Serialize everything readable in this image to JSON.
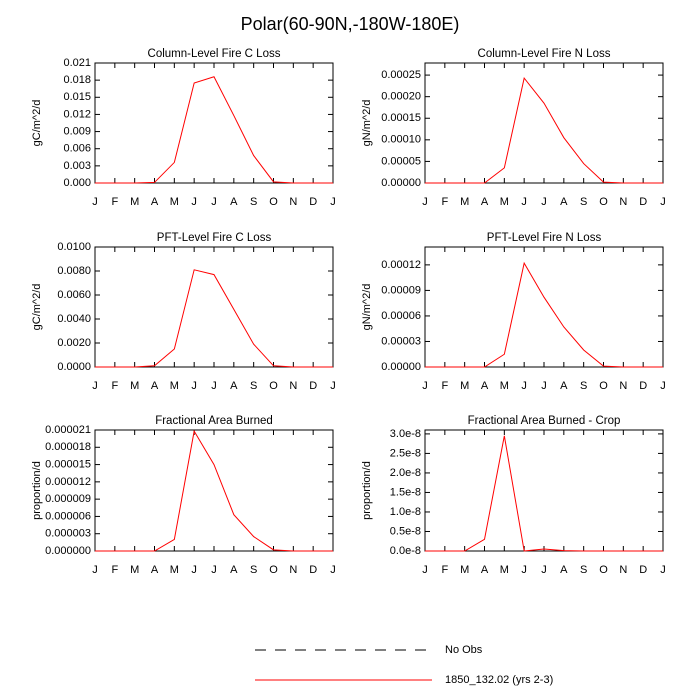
{
  "title": "Polar(60-90N,-180W-180E)",
  "legend": [
    {
      "name": "No Obs",
      "color": "#000000",
      "dashed": true
    },
    {
      "name": "1850_132.02 (yrs 2-3)",
      "color": "#ff0000",
      "dashed": false
    }
  ],
  "chart_data": [
    {
      "type": "line",
      "title": "Column-Level Fire C Loss",
      "ylabel": "gC/m^2/d",
      "categories": [
        "J",
        "F",
        "M",
        "A",
        "M",
        "J",
        "J",
        "A",
        "S",
        "O",
        "N",
        "D",
        "J"
      ],
      "color": "#ff0000",
      "values": [
        0,
        0,
        0,
        0.0001,
        0.0036,
        0.0175,
        0.0186,
        0.0118,
        0.0048,
        0.0002,
        0,
        0,
        0
      ],
      "ylim": [
        0,
        0.021
      ],
      "yticks": [
        {
          "value": 0,
          "label": "0.000"
        },
        {
          "value": 0.003,
          "label": "0.003"
        },
        {
          "value": 0.006,
          "label": "0.006"
        },
        {
          "value": 0.009,
          "label": "0.009"
        },
        {
          "value": 0.012,
          "label": "0.012"
        },
        {
          "value": 0.015,
          "label": "0.015"
        },
        {
          "value": 0.018,
          "label": "0.018"
        },
        {
          "value": 0.021,
          "label": "0.021"
        }
      ]
    },
    {
      "type": "line",
      "title": "Column-Level Fire N Loss",
      "ylabel": "gN/m^2/d",
      "categories": [
        "J",
        "F",
        "M",
        "A",
        "M",
        "J",
        "J",
        "A",
        "S",
        "O",
        "N",
        "D",
        "J"
      ],
      "color": "#ff0000",
      "values": [
        0,
        0,
        0,
        0,
        3.5e-05,
        0.000243,
        0.000185,
        0.000105,
        4.5e-05,
        2e-06,
        0,
        0,
        0
      ],
      "ylim": [
        0,
        0.000278
      ],
      "yticks": [
        {
          "value": 0,
          "label": "0.00000"
        },
        {
          "value": 5e-05,
          "label": "0.00005"
        },
        {
          "value": 0.0001,
          "label": "0.00010"
        },
        {
          "value": 0.00015,
          "label": "0.00015"
        },
        {
          "value": 0.0002,
          "label": "0.00020"
        },
        {
          "value": 0.00025,
          "label": "0.00025"
        }
      ]
    },
    {
      "type": "line",
      "title": "PFT-Level Fire C Loss",
      "ylabel": "gC/m^2/d",
      "categories": [
        "J",
        "F",
        "M",
        "A",
        "M",
        "J",
        "J",
        "A",
        "S",
        "O",
        "N",
        "D",
        "J"
      ],
      "color": "#ff0000",
      "values": [
        0,
        0,
        0,
        0.0001,
        0.0015,
        0.0081,
        0.0077,
        0.0048,
        0.0019,
        0.0001,
        0,
        0,
        0
      ],
      "ylim": [
        0,
        0.01
      ],
      "yticks": [
        {
          "value": 0,
          "label": "0.0000"
        },
        {
          "value": 0.002,
          "label": "0.0020"
        },
        {
          "value": 0.004,
          "label": "0.0040"
        },
        {
          "value": 0.006,
          "label": "0.0060"
        },
        {
          "value": 0.008,
          "label": "0.0080"
        },
        {
          "value": 0.01,
          "label": "0.0100"
        }
      ]
    },
    {
      "type": "line",
      "title": "PFT-Level Fire N Loss",
      "ylabel": "gN/m^2/d",
      "categories": [
        "J",
        "F",
        "M",
        "A",
        "M",
        "J",
        "J",
        "A",
        "S",
        "O",
        "N",
        "D",
        "J"
      ],
      "color": "#ff0000",
      "values": [
        0,
        0,
        0,
        0,
        1.5e-05,
        0.000122,
        8.2e-05,
        4.7e-05,
        2e-05,
        1e-06,
        0,
        0,
        0
      ],
      "ylim": [
        0,
        0.000141
      ],
      "yticks": [
        {
          "value": 0,
          "label": "0.00000"
        },
        {
          "value": 3e-05,
          "label": "0.00003"
        },
        {
          "value": 6e-05,
          "label": "0.00006"
        },
        {
          "value": 9e-05,
          "label": "0.00009"
        },
        {
          "value": 0.00012,
          "label": "0.00012"
        }
      ]
    },
    {
      "type": "line",
      "title": "Fractional Area Burned",
      "ylabel": "proportion/d",
      "categories": [
        "J",
        "F",
        "M",
        "A",
        "M",
        "J",
        "J",
        "A",
        "S",
        "O",
        "N",
        "D",
        "J"
      ],
      "color": "#ff0000",
      "values": [
        0,
        0,
        0,
        0,
        2e-06,
        2.08e-05,
        1.5e-05,
        6.3e-06,
        2.5e-06,
        2e-07,
        0,
        0,
        0
      ],
      "ylim": [
        0,
        2.1e-05
      ],
      "yticks": [
        {
          "value": 0,
          "label": "0.000000"
        },
        {
          "value": 3e-06,
          "label": "0.000003"
        },
        {
          "value": 6e-06,
          "label": "0.000006"
        },
        {
          "value": 9e-06,
          "label": "0.000009"
        },
        {
          "value": 1.2e-05,
          "label": "0.000012"
        },
        {
          "value": 1.5e-05,
          "label": "0.000015"
        },
        {
          "value": 1.8e-05,
          "label": "0.000018"
        },
        {
          "value": 2.1e-05,
          "label": "0.000021"
        }
      ]
    },
    {
      "type": "line",
      "title": "Fractional Area Burned - Crop",
      "ylabel": "proportion/d",
      "categories": [
        "J",
        "F",
        "M",
        "A",
        "M",
        "J",
        "J",
        "A",
        "S",
        "O",
        "N",
        "D",
        "J"
      ],
      "color": "#ff0000",
      "values": [
        0,
        0,
        0,
        3e-09,
        2.95e-08,
        0,
        5e-10,
        1e-10,
        0,
        0,
        0,
        0,
        0
      ],
      "ylim": [
        0,
        3.1e-08
      ],
      "yticks": [
        {
          "value": 0,
          "label": "0.0e-8"
        },
        {
          "value": 5e-09,
          "label": "0.5e-8"
        },
        {
          "value": 1e-08,
          "label": "1.0e-8"
        },
        {
          "value": 1.5e-08,
          "label": "1.5e-8"
        },
        {
          "value": 2e-08,
          "label": "2.0e-8"
        },
        {
          "value": 2.5e-08,
          "label": "2.5e-8"
        },
        {
          "value": 3e-08,
          "label": "3.0e-8"
        }
      ]
    }
  ]
}
